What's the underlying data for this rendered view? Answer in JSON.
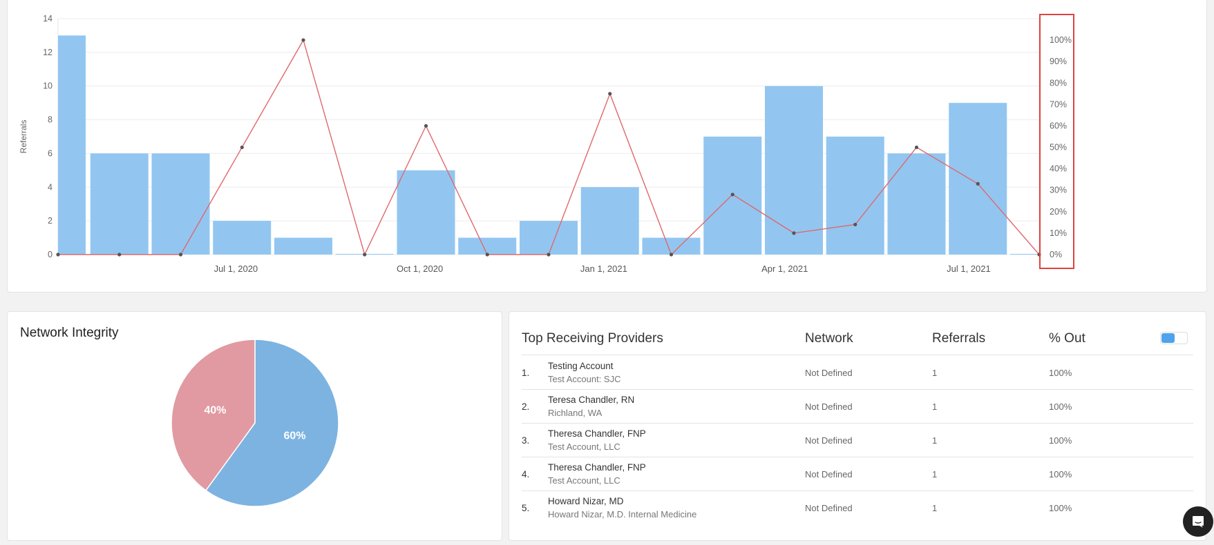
{
  "referrals_chart": {
    "ylabel": "Referrals",
    "y_ticks": [
      "0",
      "2",
      "4",
      "6",
      "8",
      "10",
      "12",
      "14"
    ],
    "y2_ticks": [
      "0%",
      "10%",
      "20%",
      "30%",
      "40%",
      "50%",
      "60%",
      "70%",
      "80%",
      "90%",
      "100%"
    ],
    "x_ticks": [
      {
        "label": "Jul 1, 2020",
        "value": 2.9
      },
      {
        "label": "Oct 1, 2020",
        "value": 5.9
      },
      {
        "label": "Jan 1, 2021",
        "value": 8.9
      },
      {
        "label": "Apr 1, 2021",
        "value": 11.85
      },
      {
        "label": "Jul 1, 2021",
        "value": 14.85
      }
    ],
    "highlight_color": "#e0413f"
  },
  "chart_data": {
    "type": "bar",
    "x": [
      0,
      1,
      2,
      3,
      4,
      5,
      6,
      7,
      8,
      9,
      10,
      11,
      12,
      13,
      14,
      15,
      16
    ],
    "series": [
      {
        "type": "bar",
        "axis": "left",
        "color": "#92c6f1",
        "values": [
          13,
          6,
          6,
          2,
          1,
          0,
          5,
          1,
          2,
          4,
          1,
          7,
          10,
          7,
          6,
          9,
          0
        ]
      },
      {
        "type": "line",
        "axis": "right",
        "color": "#e0686b",
        "values": [
          0,
          0,
          0,
          0.5,
          1.0,
          0,
          0.6,
          0,
          0,
          0.75,
          0,
          0.28,
          0.1,
          0.14,
          0.5,
          0.33,
          0
        ]
      }
    ],
    "ylim": [
      0,
      14
    ],
    "y2lim": [
      0,
      1.1
    ],
    "grid": true
  },
  "network_integrity": {
    "title": "Network Integrity",
    "chart_data": {
      "type": "pie",
      "slices": [
        {
          "label": "60%",
          "value": 60,
          "color": "#7cb3e1"
        },
        {
          "label": "40%",
          "value": 40,
          "color": "#e19aa1"
        }
      ]
    }
  },
  "providers": {
    "headers": {
      "name": "Top Receiving Providers",
      "network": "Network",
      "referrals": "Referrals",
      "out": "% Out"
    },
    "rows": [
      {
        "rank": "1.",
        "name": "Testing Account",
        "sub": "Test Account: SJC",
        "network": "Not Defined",
        "referrals": "1",
        "out": "100%"
      },
      {
        "rank": "2.",
        "name": "Teresa Chandler, RN",
        "sub": "Richland, WA",
        "network": "Not Defined",
        "referrals": "1",
        "out": "100%"
      },
      {
        "rank": "3.",
        "name": "Theresa Chandler, FNP",
        "sub": "Test Account, LLC",
        "network": "Not Defined",
        "referrals": "1",
        "out": "100%"
      },
      {
        "rank": "4.",
        "name": "Theresa Chandler, FNP",
        "sub": "Test Account, LLC",
        "network": "Not Defined",
        "referrals": "1",
        "out": "100%"
      },
      {
        "rank": "5.",
        "name": "Howard Nizar, MD",
        "sub": "Howard Nizar, M.D. Internal Medicine",
        "network": "Not Defined",
        "referrals": "1",
        "out": "100%"
      }
    ]
  }
}
